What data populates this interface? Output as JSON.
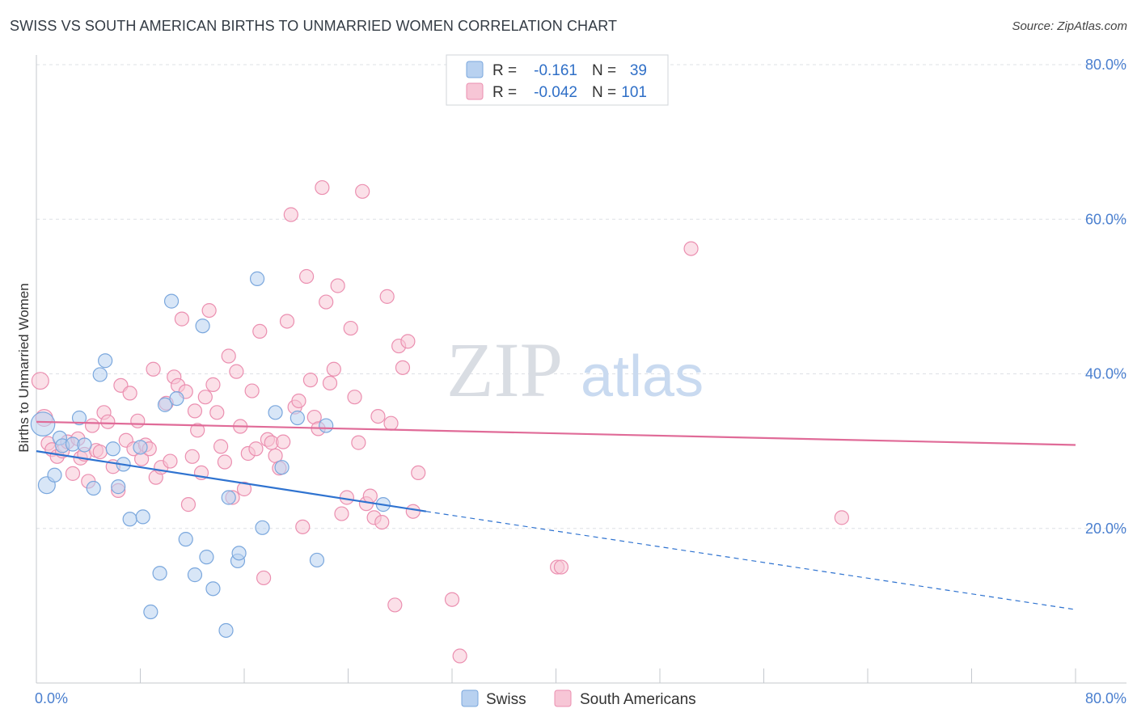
{
  "title": "SWISS VS SOUTH AMERICAN BIRTHS TO UNMARRIED WOMEN CORRELATION CHART",
  "source": "Source: ZipAtlas.com",
  "watermark": {
    "zip": "ZIP",
    "atlas": "atlas"
  },
  "colors": {
    "swiss_fill": "#b8d1f0",
    "swiss_stroke": "#7aa7dd",
    "swiss_line": "#2f73d0",
    "sa_fill": "#f7c6d6",
    "sa_stroke": "#eb8fb0",
    "sa_line": "#e06b98",
    "grid": "#dde0e5",
    "axis_text": "#4a7fcf"
  },
  "legend": {
    "swiss": {
      "r_label": "R =",
      "r_value": "-0.161",
      "n_label": "N =",
      "n_value": "39"
    },
    "sa": {
      "r_label": "R =",
      "r_value": "-0.042",
      "n_label": "N =",
      "n_value": "101"
    }
  },
  "chart_data": {
    "type": "scatter",
    "title": "SWISS VS SOUTH AMERICAN BIRTHS TO UNMARRIED WOMEN CORRELATION CHART",
    "xlabel": "",
    "ylabel": "Births to Unmarried Women",
    "xlim": [
      0,
      80
    ],
    "ylim": [
      0,
      80
    ],
    "x_tick_labels": [
      "0.0%",
      "80.0%"
    ],
    "y_tick_labels": [
      "20.0%",
      "40.0%",
      "60.0%",
      "80.0%"
    ],
    "y_ticks": [
      20,
      40,
      60,
      80
    ],
    "legend_entries": [
      "Swiss",
      "South Americans"
    ],
    "series": [
      {
        "name": "Swiss",
        "r": -0.161,
        "n": 39,
        "trend": {
          "x0": 0,
          "y0": 30.0,
          "x1": 30,
          "y1": 22.2,
          "dash_to_x": 80,
          "dash_to_y": 9.5
        },
        "points": [
          [
            0.5,
            33.5,
            3
          ],
          [
            0.8,
            25.6,
            1.5
          ],
          [
            1.4,
            26.9,
            1
          ],
          [
            1.8,
            31.7,
            1
          ],
          [
            2.0,
            30.7,
            1
          ],
          [
            2.8,
            30.9,
            1
          ],
          [
            3.3,
            34.3,
            1
          ],
          [
            3.7,
            30.8,
            1
          ],
          [
            4.4,
            25.2,
            1
          ],
          [
            4.9,
            39.9,
            1
          ],
          [
            5.3,
            41.7,
            1
          ],
          [
            5.9,
            30.3,
            1
          ],
          [
            6.3,
            25.4,
            1
          ],
          [
            6.7,
            28.3,
            1
          ],
          [
            7.2,
            21.2,
            1
          ],
          [
            8.0,
            30.5,
            1
          ],
          [
            8.2,
            21.5,
            1
          ],
          [
            8.8,
            9.2,
            1
          ],
          [
            9.5,
            14.2,
            1
          ],
          [
            9.9,
            36.0,
            1
          ],
          [
            10.4,
            49.4,
            1
          ],
          [
            10.8,
            36.8,
            1
          ],
          [
            11.5,
            18.6,
            1
          ],
          [
            12.2,
            14.0,
            1
          ],
          [
            12.8,
            46.2,
            1
          ],
          [
            13.1,
            16.3,
            1
          ],
          [
            13.6,
            12.2,
            1
          ],
          [
            14.6,
            6.8,
            1
          ],
          [
            14.8,
            24.0,
            1
          ],
          [
            15.5,
            15.8,
            1
          ],
          [
            15.6,
            16.8,
            1
          ],
          [
            17.0,
            52.3,
            1
          ],
          [
            17.4,
            20.1,
            1
          ],
          [
            18.4,
            35.0,
            1
          ],
          [
            18.9,
            27.9,
            1
          ],
          [
            20.1,
            34.3,
            1
          ],
          [
            21.6,
            15.9,
            1
          ],
          [
            22.3,
            33.3,
            1
          ],
          [
            26.7,
            23.1,
            1
          ]
        ]
      },
      {
        "name": "South Americans",
        "r": -0.042,
        "n": 101,
        "trend": {
          "x0": 0,
          "y0": 33.8,
          "x1": 80,
          "y1": 30.8
        },
        "points": [
          [
            0.3,
            39.1,
            1.5
          ],
          [
            0.6,
            34.3,
            1.5
          ],
          [
            0.9,
            31.0,
            1
          ],
          [
            1.2,
            30.2,
            1
          ],
          [
            1.6,
            29.3,
            1
          ],
          [
            2.0,
            30.0,
            1
          ],
          [
            2.4,
            31.2,
            1
          ],
          [
            2.8,
            27.1,
            1
          ],
          [
            3.2,
            31.6,
            1
          ],
          [
            3.4,
            29.1,
            1
          ],
          [
            3.7,
            29.6,
            1
          ],
          [
            4.0,
            26.1,
            1
          ],
          [
            4.3,
            33.3,
            1
          ],
          [
            4.6,
            30.1,
            1
          ],
          [
            4.9,
            29.9,
            1
          ],
          [
            5.2,
            35.0,
            1
          ],
          [
            5.5,
            33.8,
            1
          ],
          [
            5.9,
            28.0,
            1
          ],
          [
            6.3,
            24.9,
            1
          ],
          [
            6.5,
            38.5,
            1
          ],
          [
            6.9,
            31.4,
            1
          ],
          [
            7.2,
            37.5,
            1
          ],
          [
            7.5,
            30.3,
            1
          ],
          [
            7.8,
            33.9,
            1
          ],
          [
            8.1,
            29.0,
            1
          ],
          [
            8.4,
            30.8,
            1
          ],
          [
            8.7,
            30.3,
            1
          ],
          [
            9.0,
            40.6,
            1
          ],
          [
            9.2,
            26.6,
            1
          ],
          [
            9.6,
            27.9,
            1
          ],
          [
            10.0,
            36.2,
            1
          ],
          [
            10.3,
            28.7,
            1
          ],
          [
            10.6,
            39.6,
            1
          ],
          [
            10.9,
            38.5,
            1
          ],
          [
            11.2,
            47.1,
            1
          ],
          [
            11.5,
            37.7,
            1
          ],
          [
            11.7,
            23.1,
            1
          ],
          [
            12.0,
            29.3,
            1
          ],
          [
            12.2,
            35.2,
            1
          ],
          [
            12.4,
            32.7,
            1
          ],
          [
            12.7,
            27.2,
            1
          ],
          [
            13.0,
            37.0,
            1
          ],
          [
            13.3,
            48.2,
            1
          ],
          [
            13.6,
            38.6,
            1
          ],
          [
            13.9,
            35.0,
            1
          ],
          [
            14.2,
            30.6,
            1
          ],
          [
            14.5,
            28.6,
            1
          ],
          [
            14.8,
            42.3,
            1
          ],
          [
            15.1,
            24.0,
            1
          ],
          [
            15.4,
            40.3,
            1
          ],
          [
            15.7,
            33.2,
            1
          ],
          [
            16.0,
            25.1,
            1
          ],
          [
            16.3,
            29.7,
            1
          ],
          [
            16.6,
            37.8,
            1
          ],
          [
            16.9,
            30.3,
            1
          ],
          [
            17.2,
            45.5,
            1
          ],
          [
            17.5,
            13.6,
            1
          ],
          [
            17.8,
            31.5,
            1
          ],
          [
            18.1,
            31.1,
            1
          ],
          [
            18.4,
            29.4,
            1
          ],
          [
            18.7,
            27.8,
            1
          ],
          [
            19.0,
            31.2,
            1
          ],
          [
            19.3,
            46.8,
            1
          ],
          [
            19.6,
            60.6,
            1
          ],
          [
            19.9,
            35.7,
            1
          ],
          [
            20.2,
            36.5,
            1
          ],
          [
            20.5,
            20.2,
            1
          ],
          [
            20.8,
            52.6,
            1
          ],
          [
            21.1,
            39.2,
            1
          ],
          [
            21.4,
            34.4,
            1
          ],
          [
            21.7,
            32.9,
            1
          ],
          [
            22.0,
            64.1,
            1
          ],
          [
            22.3,
            49.3,
            1
          ],
          [
            22.6,
            38.8,
            1
          ],
          [
            22.9,
            40.6,
            1
          ],
          [
            23.2,
            51.4,
            1
          ],
          [
            23.5,
            21.9,
            1
          ],
          [
            23.9,
            24.0,
            1
          ],
          [
            24.2,
            45.9,
            1
          ],
          [
            24.5,
            37.0,
            1
          ],
          [
            24.8,
            31.1,
            1
          ],
          [
            25.1,
            63.6,
            1
          ],
          [
            25.4,
            23.2,
            1
          ],
          [
            25.7,
            24.2,
            1
          ],
          [
            26.0,
            21.4,
            1
          ],
          [
            26.3,
            34.5,
            1
          ],
          [
            26.6,
            20.8,
            1
          ],
          [
            27.0,
            50.0,
            1
          ],
          [
            27.3,
            33.6,
            1
          ],
          [
            27.6,
            10.1,
            1
          ],
          [
            27.9,
            43.6,
            1
          ],
          [
            28.2,
            40.8,
            1
          ],
          [
            28.6,
            44.2,
            1
          ],
          [
            29.0,
            22.2,
            1
          ],
          [
            29.4,
            27.2,
            1
          ],
          [
            32.0,
            10.8,
            1
          ],
          [
            32.6,
            3.5,
            1
          ],
          [
            40.1,
            15.0,
            1
          ],
          [
            40.4,
            15.0,
            1
          ],
          [
            50.4,
            56.2,
            1
          ],
          [
            62.0,
            21.4,
            1
          ]
        ]
      }
    ]
  },
  "bottom_legend": {
    "swiss": "Swiss",
    "sa": "South Americans"
  }
}
